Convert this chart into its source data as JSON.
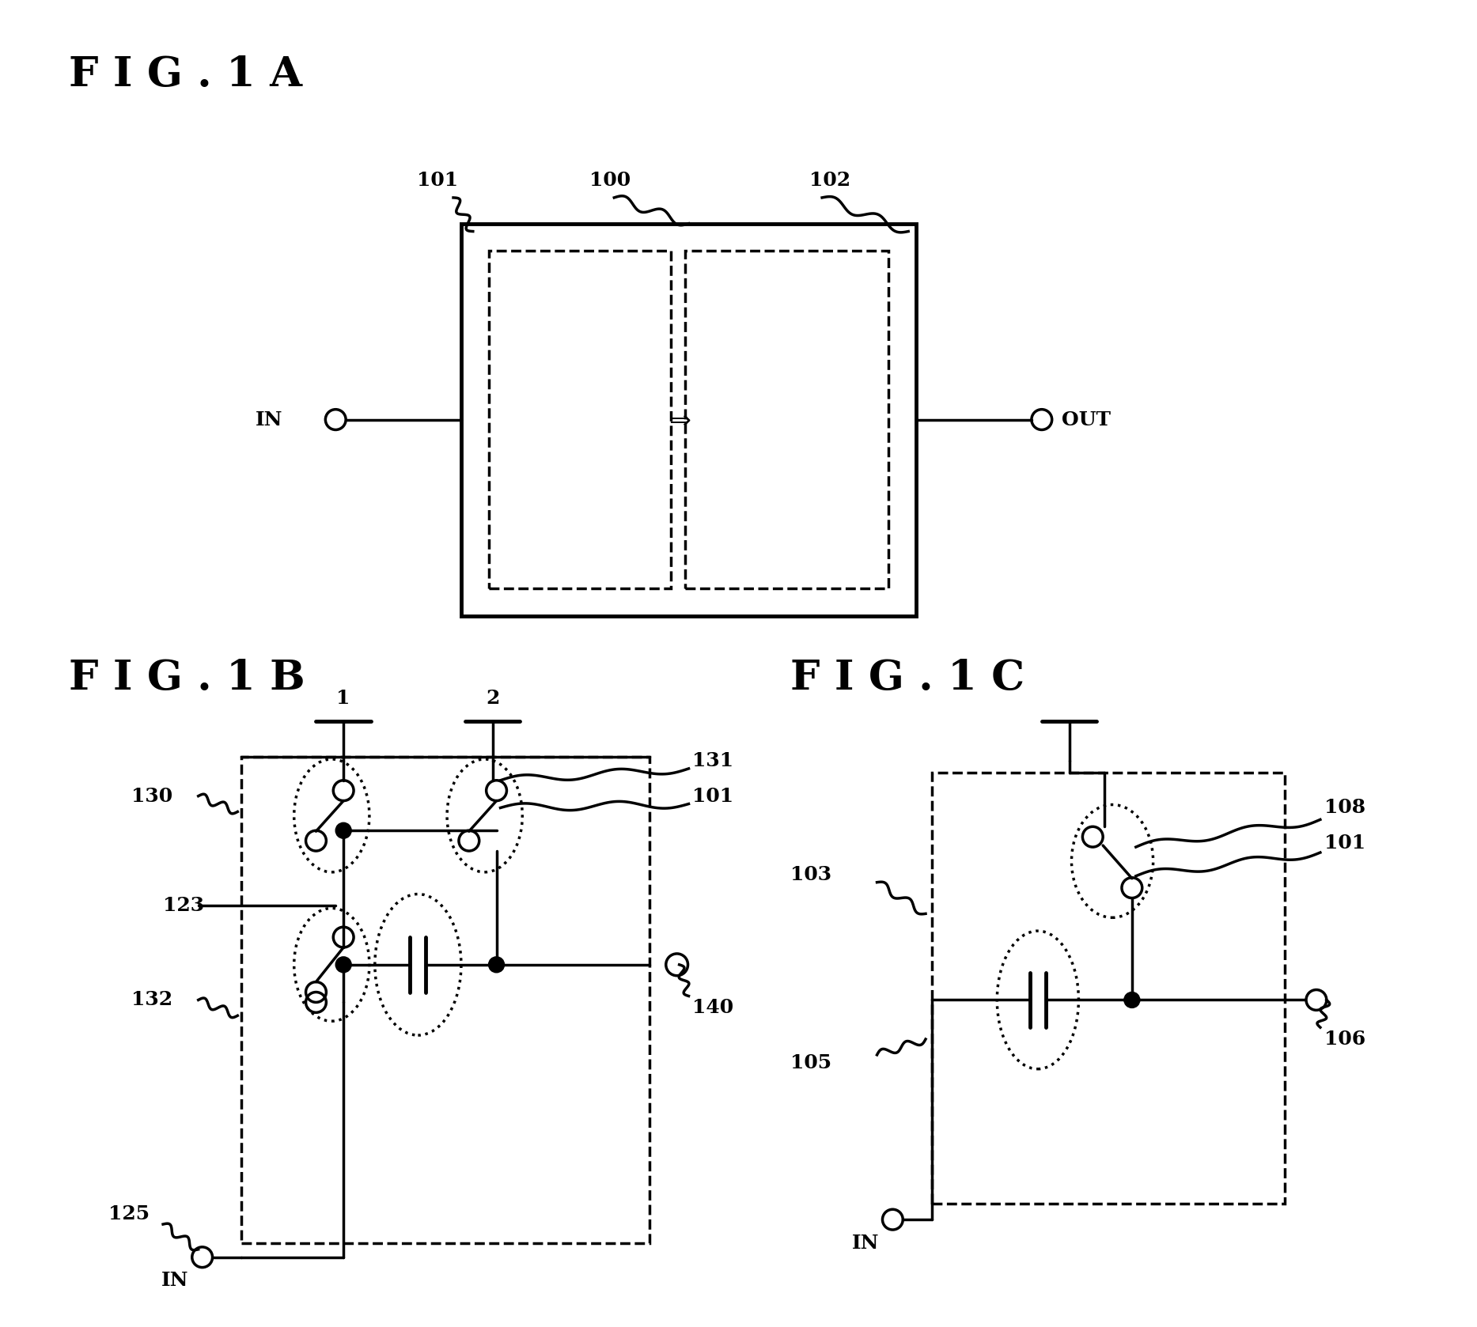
{
  "bg_color": "#ffffff",
  "title_1A": "F I G . 1 A",
  "title_1B": "F I G . 1 B",
  "title_1C": "F I G . 1 C",
  "label_fontsize": 18,
  "title_fontsize": 38,
  "linewidth": 2.5
}
